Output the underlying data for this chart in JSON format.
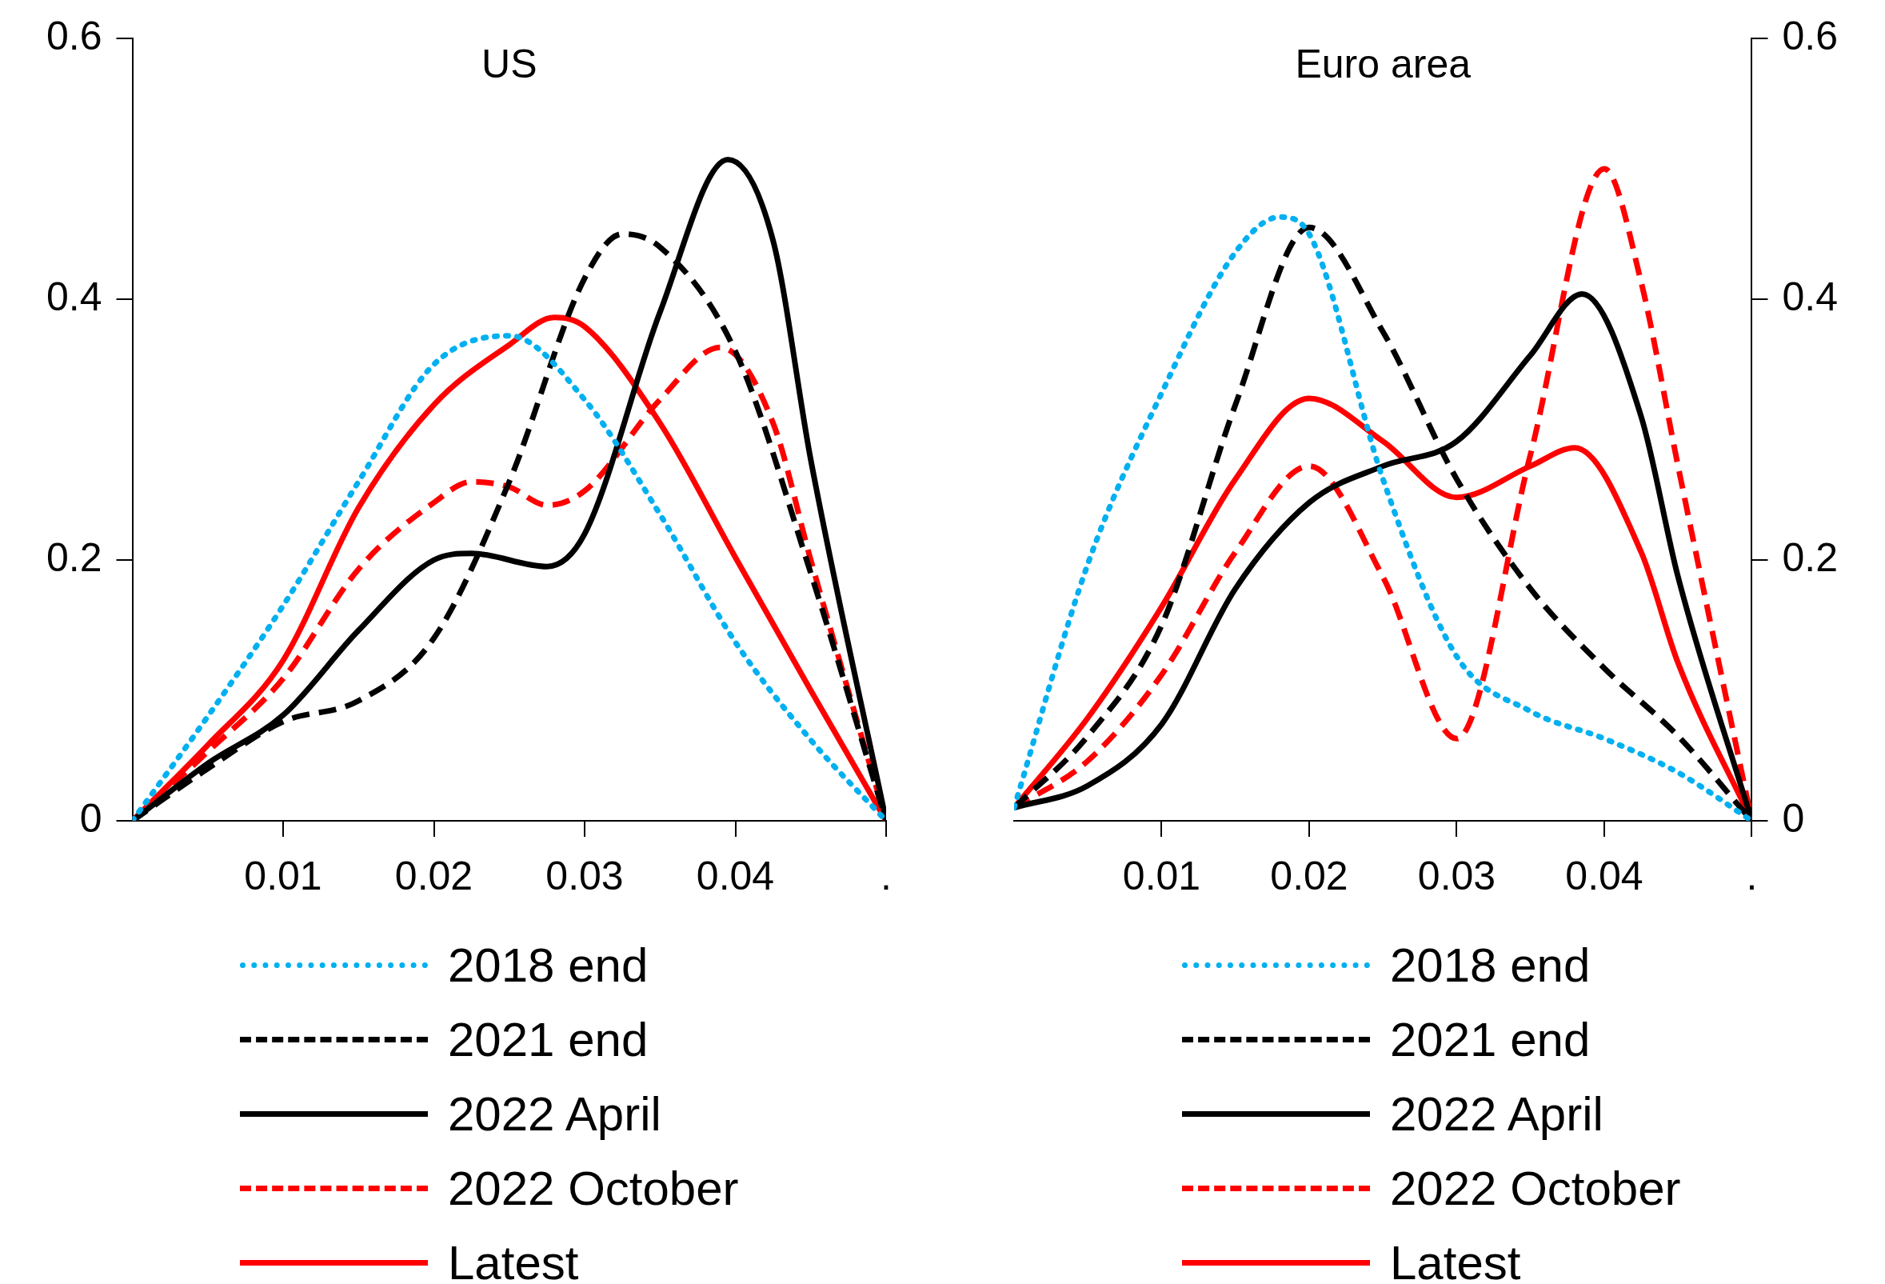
{
  "chart_data": [
    {
      "type": "line",
      "title": "US",
      "x": [
        0,
        0.005,
        0.01,
        0.015,
        0.02,
        0.025,
        0.03,
        0.035,
        0.04,
        0.045,
        0.05
      ],
      "xlim": [
        0,
        0.05
      ],
      "xticks": [
        0.01,
        0.02,
        0.03,
        0.04,
        {
          "value": 0.05,
          "label": "."
        }
      ],
      "ylim": [
        0,
        0.6
      ],
      "yticks": [
        0,
        0.2,
        0.4,
        0.6
      ],
      "grid": false,
      "legend": "bottom",
      "marker": "none",
      "series": [
        {
          "name": "2018 end",
          "color": "#00b0f0",
          "line_style": "dotted",
          "values": [
            0,
            0.08,
            0.165,
            0.26,
            0.35,
            0.372,
            0.323,
            0.235,
            0.137,
            0.062,
            0
          ]
        },
        {
          "name": "2021 end",
          "color": "#000000",
          "line_style": "dashed",
          "x": [
            0,
            0.005,
            0.01,
            0.015,
            0.02,
            0.025,
            0.03,
            0.0325,
            0.035,
            0.04,
            0.045,
            0.05
          ],
          "values": [
            0,
            0.04,
            0.076,
            0.092,
            0.14,
            0.26,
            0.416,
            0.45,
            0.44,
            0.36,
            0.19,
            0
          ]
        },
        {
          "name": "2022 April",
          "color": "#000000",
          "line_style": "solid",
          "x": [
            0,
            0.005,
            0.01,
            0.015,
            0.02,
            0.0225,
            0.0275,
            0.03,
            0.035,
            0.0395,
            0.0425,
            0.045,
            0.05
          ],
          "values": [
            0,
            0.044,
            0.081,
            0.146,
            0.2,
            0.205,
            0.195,
            0.22,
            0.39,
            0.507,
            0.445,
            0.277,
            0
          ]
        },
        {
          "name": "2022 October",
          "color": "#ff0000",
          "line_style": "dashed",
          "x": [
            0,
            0.005,
            0.01,
            0.015,
            0.02,
            0.0225,
            0.025,
            0.0275,
            0.03,
            0.035,
            0.039,
            0.0425,
            0.045,
            0.05
          ],
          "values": [
            0,
            0.053,
            0.109,
            0.193,
            0.244,
            0.26,
            0.256,
            0.242,
            0.253,
            0.323,
            0.363,
            0.305,
            0.2,
            0
          ]
        },
        {
          "name": "Latest",
          "color": "#ff0000",
          "line_style": "solid",
          "x": [
            0,
            0.005,
            0.01,
            0.015,
            0.02,
            0.025,
            0.028,
            0.03,
            0.035,
            0.04,
            0.045,
            0.05
          ],
          "values": [
            0,
            0.058,
            0.123,
            0.24,
            0.319,
            0.365,
            0.386,
            0.379,
            0.305,
            0.202,
            0.1,
            0
          ]
        }
      ]
    },
    {
      "type": "line",
      "title": "Euro area",
      "x": [
        0,
        0.005,
        0.01,
        0.015,
        0.02,
        0.025,
        0.03,
        0.035,
        0.04,
        0.045,
        0.05
      ],
      "xlim": [
        0,
        0.05
      ],
      "xticks": [
        0.01,
        0.02,
        0.03,
        0.04,
        {
          "value": 0.05,
          "label": "."
        }
      ],
      "y2lim": [
        0,
        0.6
      ],
      "y2ticks": [
        0,
        0.2,
        0.4,
        0.6
      ],
      "grid": false,
      "legend": "bottom",
      "marker": "none",
      "series": [
        {
          "name": "2018 end",
          "color": "#00b0f0",
          "line_style": "dotted",
          "axis": "y2",
          "x": [
            0,
            0.005,
            0.01,
            0.015,
            0.018,
            0.02,
            0.025,
            0.03,
            0.035,
            0.04,
            0.045,
            0.05
          ],
          "values": [
            0.01,
            0.197,
            0.328,
            0.436,
            0.463,
            0.45,
            0.262,
            0.126,
            0.084,
            0.063,
            0.037,
            0
          ]
        },
        {
          "name": "2021 end",
          "color": "#000000",
          "line_style": "dashed",
          "axis": "y2",
          "values": [
            0.01,
            0.065,
            0.15,
            0.319,
            0.455,
            0.375,
            0.262,
            0.178,
            0.117,
            0.065,
            0
          ]
        },
        {
          "name": "2022 April",
          "color": "#000000",
          "line_style": "solid",
          "axis": "y2",
          "x": [
            0,
            0.005,
            0.01,
            0.015,
            0.02,
            0.025,
            0.03,
            0.035,
            0.0385,
            0.0425,
            0.045,
            0.05
          ],
          "values": [
            0.01,
            0.027,
            0.074,
            0.178,
            0.244,
            0.272,
            0.291,
            0.357,
            0.404,
            0.31,
            0.187,
            0
          ]
        },
        {
          "name": "2022 October",
          "color": "#ff0000",
          "line_style": "dashed",
          "axis": "y2",
          "x": [
            0,
            0.005,
            0.01,
            0.015,
            0.02,
            0.025,
            0.03,
            0.035,
            0.04,
            0.0425,
            0.045,
            0.05
          ],
          "values": [
            0.01,
            0.046,
            0.112,
            0.206,
            0.272,
            0.187,
            0.063,
            0.281,
            0.5,
            0.413,
            0.272,
            0
          ]
        },
        {
          "name": "Latest",
          "color": "#ff0000",
          "line_style": "solid",
          "axis": "y2",
          "x": [
            0,
            0.005,
            0.01,
            0.015,
            0.02,
            0.025,
            0.03,
            0.035,
            0.038,
            0.0425,
            0.045,
            0.05
          ],
          "values": [
            0.01,
            0.079,
            0.164,
            0.262,
            0.324,
            0.291,
            0.248,
            0.272,
            0.286,
            0.206,
            0.121,
            0
          ]
        }
      ]
    }
  ]
}
